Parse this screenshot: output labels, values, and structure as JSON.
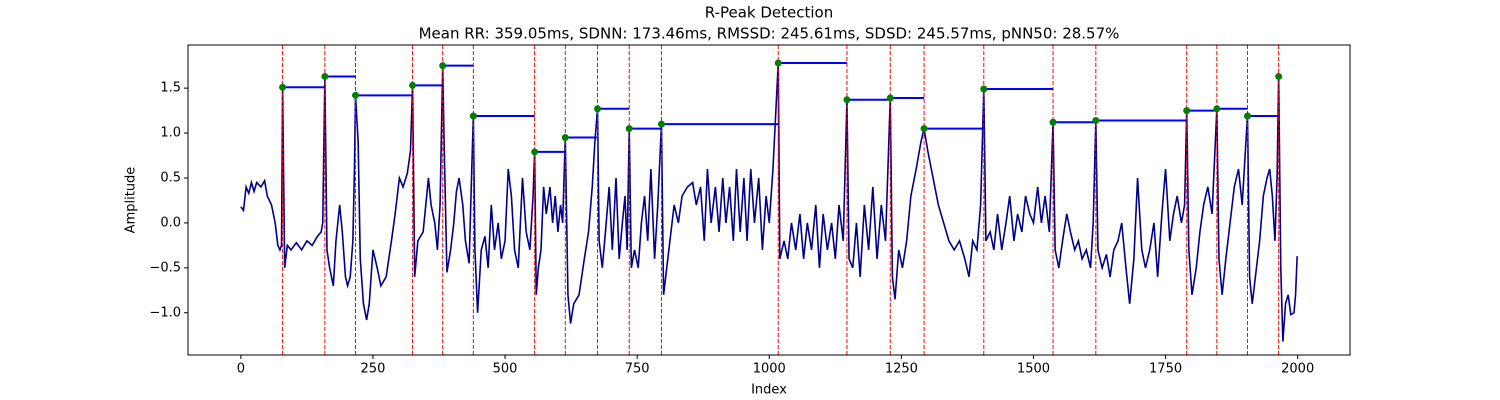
{
  "chart_data": {
    "type": "line",
    "title": "R-Peak Detection",
    "subtitle": "Mean RR: 359.05ms, SDNN: 173.46ms, RMSSD: 245.61ms, SDSD: 245.57ms, pNN50: 28.57%",
    "xlabel": "Index",
    "ylabel": "Amplitude",
    "xlim": [
      -100,
      2099
    ],
    "ylim": [
      -1.47,
      1.98
    ],
    "xticks": [
      0,
      250,
      500,
      750,
      1000,
      1250,
      1500,
      1750,
      2000
    ],
    "yticks": [
      {
        "value": -1,
        "label": "−1.0"
      },
      {
        "value": -0.5,
        "label": "−0.5"
      },
      {
        "value": 0,
        "label": "0.0"
      },
      0.5,
      {
        "value": 1,
        "label": "1.0"
      },
      1.5
    ],
    "signal": {
      "color": "#00008b",
      "x": [
        0,
        5,
        10,
        15,
        20,
        25,
        30,
        38,
        45,
        50,
        58,
        65,
        70,
        74,
        77,
        79,
        83,
        88,
        95,
        105,
        115,
        125,
        135,
        145,
        152,
        155,
        159,
        163,
        168,
        175,
        180,
        187,
        192,
        198,
        202,
        207,
        212,
        215,
        217,
        222,
        226,
        232,
        238,
        243,
        250,
        258,
        265,
        275,
        285,
        292,
        300,
        307,
        315,
        321,
        325,
        329,
        335,
        345,
        355,
        360,
        367,
        372,
        377,
        382,
        385,
        390,
        397,
        403,
        408,
        413,
        420,
        425,
        432,
        437,
        440,
        443,
        448,
        455,
        462,
        468,
        474,
        480,
        487,
        493,
        500,
        506,
        512,
        518,
        525,
        533,
        540,
        547,
        553,
        556,
        559,
        563,
        568,
        573,
        578,
        585,
        590,
        595,
        600,
        605,
        609,
        614,
        619,
        624,
        630,
        640,
        650,
        658,
        665,
        670,
        675,
        678,
        684,
        690,
        697,
        703,
        710,
        716,
        722,
        727,
        731,
        735,
        739,
        745,
        752,
        758,
        764,
        770,
        776,
        783,
        789,
        796,
        800,
        806,
        812,
        820,
        828,
        835,
        845,
        855,
        862,
        870,
        877,
        883,
        890,
        898,
        905,
        912,
        918,
        925,
        932,
        938,
        945,
        952,
        958,
        965,
        972,
        980,
        987,
        994,
        1000,
        1007,
        1017,
        1020,
        1028,
        1035,
        1042,
        1050,
        1058,
        1065,
        1072,
        1080,
        1088,
        1095,
        1102,
        1110,
        1118,
        1125,
        1132,
        1140,
        1147,
        1151,
        1158,
        1165,
        1172,
        1180,
        1188,
        1196,
        1204,
        1212,
        1220,
        1229,
        1233,
        1238,
        1245,
        1252,
        1260,
        1268,
        1278,
        1287,
        1293,
        1300,
        1310,
        1320,
        1330,
        1340,
        1350,
        1360,
        1370,
        1378,
        1385,
        1393,
        1400,
        1406,
        1410,
        1418,
        1425,
        1432,
        1440,
        1448,
        1455,
        1463,
        1470,
        1478,
        1485,
        1493,
        1500,
        1508,
        1515,
        1522,
        1530,
        1537,
        1541,
        1548,
        1555,
        1563,
        1570,
        1578,
        1585,
        1592,
        1600,
        1608,
        1613,
        1618,
        1622,
        1630,
        1638,
        1645,
        1652,
        1660,
        1667,
        1675,
        1682,
        1690,
        1697,
        1705,
        1712,
        1720,
        1728,
        1735,
        1743,
        1750,
        1758,
        1765,
        1772,
        1780,
        1786,
        1790,
        1794,
        1800,
        1808,
        1815,
        1822,
        1830,
        1838,
        1847,
        1851,
        1857,
        1864,
        1872,
        1880,
        1888,
        1895,
        1900,
        1905,
        1909,
        1914,
        1920,
        1928,
        1935,
        1942,
        1947,
        1952,
        1957,
        1961,
        1964,
        1968,
        1972,
        1977,
        1982,
        1987,
        1993,
        1996,
        1999
      ],
      "values": [
        0.18,
        0.14,
        0.4,
        0.33,
        0.45,
        0.35,
        0.45,
        0.4,
        0.47,
        0.3,
        0.2,
        0.0,
        -0.25,
        -0.3,
        -0.25,
        1.51,
        -0.5,
        -0.25,
        -0.3,
        -0.22,
        -0.3,
        -0.2,
        -0.25,
        -0.15,
        -0.1,
        0.0,
        1.63,
        -0.3,
        -0.5,
        -0.7,
        -0.2,
        0.2,
        -0.1,
        -0.6,
        -0.7,
        -0.6,
        -0.2,
        0.6,
        1.42,
        0.9,
        -0.4,
        -0.9,
        -1.08,
        -0.9,
        -0.3,
        -0.5,
        -0.7,
        -0.6,
        -0.2,
        0.1,
        0.5,
        0.4,
        0.55,
        0.8,
        1.53,
        -0.6,
        -0.2,
        -0.1,
        0.5,
        0.2,
        0.0,
        -0.3,
        0.2,
        1.75,
        0.8,
        -0.55,
        -0.3,
        0.0,
        0.35,
        0.5,
        0.2,
        -0.2,
        -0.45,
        0.6,
        1.19,
        -0.3,
        -1.0,
        -0.3,
        -0.15,
        -0.5,
        0.2,
        -0.3,
        0.0,
        -0.4,
        -0.2,
        0.6,
        0.3,
        -0.3,
        -0.5,
        0.5,
        -0.1,
        -0.3,
        0.3,
        0.79,
        -0.8,
        -0.5,
        -0.3,
        0.4,
        0.1,
        0.4,
        0.0,
        0.3,
        -0.1,
        0.2,
        0.0,
        0.95,
        -0.8,
        -1.12,
        -0.9,
        -0.8,
        -0.4,
        -0.1,
        0.4,
        0.9,
        1.27,
        -0.2,
        -0.5,
        -0.1,
        0.4,
        -0.3,
        0.5,
        -0.4,
        0.0,
        0.3,
        -0.3,
        1.05,
        -0.5,
        -0.3,
        -0.5,
        0.0,
        0.3,
        -0.2,
        0.6,
        -0.4,
        0.2,
        1.1,
        -0.8,
        -0.5,
        -0.2,
        0.2,
        0.0,
        0.3,
        0.4,
        0.45,
        0.2,
        0.4,
        -0.2,
        0.6,
        0.0,
        0.4,
        -0.1,
        0.5,
        0.0,
        0.4,
        -0.2,
        0.6,
        -0.1,
        0.5,
        -0.2,
        0.6,
        0.0,
        0.5,
        -0.3,
        0.3,
        0.0,
        0.6,
        1.78,
        -0.4,
        -0.2,
        -0.4,
        0.0,
        -0.3,
        0.1,
        -0.4,
        0.0,
        -0.3,
        0.2,
        -0.5,
        0.1,
        -0.3,
        0.0,
        -0.4,
        0.2,
        -0.2,
        1.37,
        -0.4,
        -0.5,
        0.0,
        -0.6,
        0.2,
        -0.3,
        0.4,
        -0.4,
        0.2,
        -0.2,
        1.39,
        -0.6,
        -0.85,
        -0.3,
        -0.5,
        -0.2,
        0.3,
        0.6,
        0.9,
        1.05,
        0.8,
        0.5,
        0.2,
        0.0,
        -0.2,
        -0.3,
        -0.2,
        -0.4,
        -0.6,
        -0.2,
        -0.3,
        0.2,
        1.49,
        -0.2,
        -0.1,
        -0.3,
        0.1,
        -0.3,
        0.0,
        0.3,
        -0.2,
        0.1,
        -0.1,
        0.3,
        0.1,
        0.0,
        0.4,
        0.0,
        0.3,
        -0.1,
        1.12,
        -0.3,
        -0.5,
        -0.2,
        0.1,
        -0.1,
        -0.3,
        -0.2,
        -0.4,
        -0.3,
        -0.5,
        0.0,
        1.14,
        -0.3,
        -0.5,
        -0.35,
        -0.6,
        -0.3,
        -0.2,
        0.0,
        -0.5,
        -0.9,
        -0.4,
        0.5,
        -0.3,
        -0.5,
        -0.3,
        0.0,
        -0.6,
        0.1,
        0.6,
        -0.2,
        0.1,
        0.3,
        0.0,
        0.2,
        1.25,
        -0.3,
        -0.8,
        -0.5,
        -0.1,
        0.2,
        0.4,
        0.1,
        1.27,
        -0.4,
        -0.8,
        -0.4,
        0.0,
        0.4,
        0.6,
        0.2,
        0.7,
        1.19,
        -0.6,
        -0.9,
        -0.6,
        -0.2,
        0.3,
        0.5,
        0.6,
        0.3,
        -0.2,
        0.5,
        1.63,
        -0.5,
        -1.32,
        -0.9,
        -0.8,
        -1.02,
        -1.0,
        -0.8,
        -0.37
      ]
    },
    "peaks": {
      "color": "#008000",
      "line_color": "#ff0000",
      "interval_color": "#0000ff",
      "x": [
        79,
        159,
        217,
        325,
        382,
        440,
        556,
        614,
        675,
        735,
        796,
        1017,
        1147,
        1229,
        1293,
        1406,
        1537,
        1618,
        1790,
        1847,
        1905,
        1964
      ],
      "values": [
        1.51,
        1.63,
        1.42,
        1.53,
        1.75,
        1.19,
        0.79,
        0.95,
        1.27,
        1.05,
        1.1,
        1.78,
        1.37,
        1.39,
        1.05,
        1.49,
        1.12,
        1.14,
        1.25,
        1.27,
        1.19,
        1.63
      ]
    }
  }
}
